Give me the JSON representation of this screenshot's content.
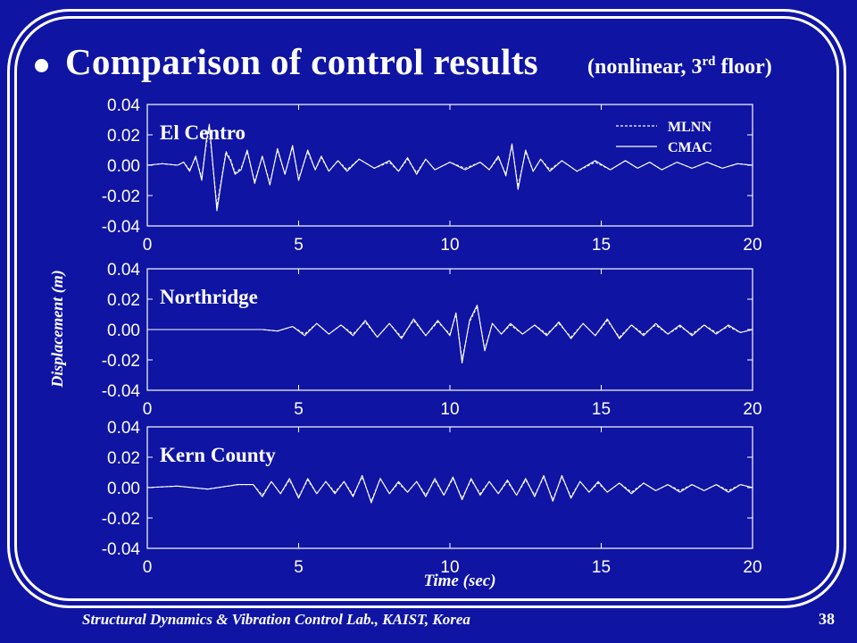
{
  "slide": {
    "title": "Comparison of control results",
    "subtitle_prefix": "(nonlinear, 3",
    "subtitle_sup": "rd",
    "subtitle_suffix": " floor)",
    "footer": "Structural Dynamics & Vibration Control Lab., KAIST, Korea",
    "page_number": "38"
  },
  "colors": {
    "background": "#0f14a3",
    "foreground": "#ffffff"
  },
  "chart_data": {
    "type": "line",
    "xlabel": "Time (sec)",
    "ylabel": "Displacement (m)",
    "xlim": [
      0,
      20
    ],
    "ylim": [
      -0.04,
      0.04
    ],
    "xticks": [
      "0",
      "5",
      "10",
      "15",
      "20"
    ],
    "yticks": [
      "0.04",
      "0.02",
      "0.00",
      "-0.02",
      "-0.04"
    ],
    "grid": false,
    "legend_position": "top-right",
    "legend": [
      {
        "name": "MLNN",
        "style": "dashed"
      },
      {
        "name": "CMAC",
        "style": "solid"
      }
    ],
    "panels": [
      {
        "label": "El Centro",
        "series": [
          {
            "name": "CMAC",
            "x": [
              0,
              0.5,
              1,
              1.2,
              1.4,
              1.6,
              1.8,
              1.95,
              2.05,
              2.15,
              2.3,
              2.45,
              2.6,
              2.75,
              2.9,
              3.1,
              3.3,
              3.55,
              3.8,
              4.05,
              4.3,
              4.55,
              4.8,
              5,
              5.3,
              5.55,
              5.75,
              6,
              6.3,
              6.6,
              7,
              7.5,
              8,
              8.3,
              8.6,
              8.9,
              9.2,
              9.5,
              10,
              10.5,
              11,
              11.3,
              11.6,
              11.85,
              12.05,
              12.25,
              12.5,
              12.75,
              13,
              13.3,
              13.7,
              14.2,
              14.8,
              15.3,
              15.8,
              16.2,
              16.6,
              17,
              17.5,
              18,
              18.5,
              19,
              19.5,
              20
            ],
            "y": [
              0,
              0.001,
              0,
              0.002,
              -0.004,
              0.006,
              -0.01,
              0.016,
              0.027,
              0.004,
              -0.03,
              -0.01,
              0.008,
              0.003,
              -0.006,
              -0.003,
              0.01,
              -0.012,
              0.006,
              -0.013,
              0.011,
              -0.006,
              0.013,
              -0.01,
              0.01,
              -0.003,
              0.006,
              -0.004,
              0.003,
              -0.004,
              0.004,
              -0.002,
              0.003,
              -0.004,
              0.005,
              -0.006,
              0.004,
              -0.003,
              0.002,
              -0.003,
              0.002,
              -0.003,
              0.006,
              -0.007,
              0.014,
              -0.016,
              0.01,
              -0.004,
              0.004,
              -0.004,
              0.003,
              -0.004,
              0.003,
              -0.003,
              0.003,
              -0.002,
              0.002,
              -0.003,
              0.002,
              -0.002,
              0.002,
              -0.002,
              0.001,
              0
            ]
          },
          {
            "name": "MLNN",
            "x": [
              0,
              0.5,
              1,
              1.2,
              1.4,
              1.6,
              1.8,
              1.95,
              2.05,
              2.15,
              2.3,
              2.45,
              2.6,
              2.75,
              2.9,
              3.1,
              3.3,
              3.55,
              3.8,
              4.05,
              4.3,
              4.55,
              4.8,
              5,
              5.3,
              5.55,
              5.75,
              6,
              6.3,
              6.6,
              7,
              7.5,
              8,
              8.3,
              8.6,
              8.9,
              9.2,
              9.5,
              10,
              10.5,
              11,
              11.3,
              11.6,
              11.85,
              12.05,
              12.25,
              12.5,
              12.75,
              13,
              13.3,
              13.7,
              14.2,
              14.8,
              15.3,
              15.8,
              16.2,
              16.6,
              17,
              17.5,
              18,
              18.5,
              19,
              19.5,
              20
            ],
            "y": [
              0,
              0.001,
              0,
              0.002,
              -0.003,
              0.005,
              -0.008,
              0.014,
              0.024,
              0.003,
              -0.027,
              -0.009,
              0.009,
              0.004,
              -0.005,
              -0.002,
              0.009,
              -0.011,
              0.006,
              -0.012,
              0.01,
              -0.006,
              0.012,
              -0.009,
              0.009,
              -0.003,
              0.005,
              -0.004,
              0.003,
              -0.003,
              0.004,
              -0.002,
              0.002,
              -0.004,
              0.004,
              -0.005,
              0.004,
              -0.003,
              0.002,
              -0.002,
              0.002,
              -0.003,
              0.005,
              -0.006,
              0.013,
              -0.014,
              0.009,
              -0.004,
              0.004,
              -0.003,
              0.003,
              -0.004,
              0.002,
              -0.003,
              0.003,
              -0.002,
              0.002,
              -0.003,
              0.002,
              -0.002,
              0.002,
              -0.002,
              0.001,
              0
            ]
          }
        ]
      },
      {
        "label": "Northridge",
        "series": [
          {
            "name": "CMAC",
            "x": [
              0,
              1,
              2,
              3,
              3.8,
              4.3,
              4.8,
              5.2,
              5.6,
              6,
              6.4,
              6.8,
              7.2,
              7.6,
              8,
              8.4,
              8.8,
              9.2,
              9.6,
              10,
              10.2,
              10.4,
              10.65,
              10.9,
              11.15,
              11.4,
              11.7,
              12,
              12.4,
              12.8,
              13.2,
              13.6,
              14,
              14.4,
              14.8,
              15.2,
              15.6,
              16,
              16.4,
              16.8,
              17.2,
              17.6,
              18,
              18.4,
              18.8,
              19.2,
              19.6,
              20
            ],
            "y": [
              0,
              0,
              0,
              0,
              0,
              -0.001,
              0.002,
              -0.004,
              0.004,
              -0.003,
              0.003,
              -0.004,
              0.006,
              -0.005,
              0.004,
              -0.006,
              0.007,
              -0.004,
              0.006,
              -0.004,
              0.011,
              -0.022,
              0.006,
              0.016,
              -0.014,
              0.004,
              -0.003,
              0.004,
              -0.003,
              0.003,
              -0.004,
              0.005,
              -0.006,
              0.004,
              -0.004,
              0.007,
              -0.006,
              0.003,
              -0.004,
              0.004,
              -0.003,
              0.003,
              -0.004,
              0.003,
              -0.003,
              0.003,
              -0.002,
              0
            ]
          },
          {
            "name": "MLNN",
            "x": [
              0,
              1,
              2,
              3,
              3.8,
              4.3,
              4.8,
              5.2,
              5.6,
              6,
              6.4,
              6.8,
              7.2,
              7.6,
              8,
              8.4,
              8.8,
              9.2,
              9.6,
              10,
              10.2,
              10.4,
              10.65,
              10.9,
              11.15,
              11.4,
              11.7,
              12,
              12.4,
              12.8,
              13.2,
              13.6,
              14,
              14.4,
              14.8,
              15.2,
              15.6,
              16,
              16.4,
              16.8,
              17.2,
              17.6,
              18,
              18.4,
              18.8,
              19.2,
              19.6,
              20
            ],
            "y": [
              0,
              0,
              0,
              0,
              0,
              -0.001,
              0.002,
              -0.003,
              0.004,
              -0.003,
              0.003,
              -0.003,
              0.005,
              -0.005,
              0.004,
              -0.005,
              0.006,
              -0.004,
              0.005,
              -0.003,
              0.01,
              -0.02,
              0.005,
              0.015,
              -0.013,
              0.004,
              -0.003,
              0.003,
              -0.003,
              0.003,
              -0.003,
              0.004,
              -0.005,
              0.004,
              -0.004,
              0.006,
              -0.005,
              0.003,
              -0.003,
              0.003,
              -0.003,
              0.002,
              -0.003,
              0.003,
              -0.002,
              0.002,
              -0.002,
              0
            ]
          }
        ]
      },
      {
        "label": "Kern County",
        "series": [
          {
            "name": "CMAC",
            "x": [
              0,
              1,
              2,
              3,
              3.5,
              3.8,
              4.1,
              4.4,
              4.7,
              5,
              5.3,
              5.6,
              5.9,
              6.2,
              6.5,
              6.8,
              7.1,
              7.4,
              7.7,
              8,
              8.3,
              8.6,
              8.9,
              9.2,
              9.5,
              9.8,
              10.1,
              10.4,
              10.7,
              11,
              11.3,
              11.6,
              11.9,
              12.2,
              12.5,
              12.8,
              13.1,
              13.4,
              13.7,
              14,
              14.3,
              14.6,
              14.9,
              15.2,
              15.6,
              16,
              16.4,
              16.8,
              17.2,
              17.6,
              18,
              18.4,
              18.8,
              19.2,
              19.6,
              20
            ],
            "y": [
              0,
              0.001,
              -0.001,
              0.002,
              0.002,
              -0.006,
              0.004,
              -0.004,
              0.006,
              -0.007,
              0.006,
              -0.004,
              0.004,
              -0.004,
              0.004,
              -0.006,
              0.008,
              -0.01,
              0.006,
              -0.004,
              0.004,
              -0.003,
              0.004,
              -0.006,
              0.006,
              -0.005,
              0.007,
              -0.008,
              0.006,
              -0.005,
              0.004,
              -0.004,
              0.005,
              -0.005,
              0.006,
              -0.006,
              0.008,
              -0.009,
              0.008,
              -0.007,
              0.004,
              -0.003,
              0.004,
              -0.003,
              0.003,
              -0.004,
              0.003,
              -0.002,
              0.002,
              -0.003,
              0.002,
              -0.002,
              0.002,
              -0.003,
              0.002,
              0
            ]
          },
          {
            "name": "MLNN",
            "x": [
              0,
              1,
              2,
              3,
              3.5,
              3.8,
              4.1,
              4.4,
              4.7,
              5,
              5.3,
              5.6,
              5.9,
              6.2,
              6.5,
              6.8,
              7.1,
              7.4,
              7.7,
              8,
              8.3,
              8.6,
              8.9,
              9.2,
              9.5,
              9.8,
              10.1,
              10.4,
              10.7,
              11,
              11.3,
              11.6,
              11.9,
              12.2,
              12.5,
              12.8,
              13.1,
              13.4,
              13.7,
              14,
              14.3,
              14.6,
              14.9,
              15.2,
              15.6,
              16,
              16.4,
              16.8,
              17.2,
              17.6,
              18,
              18.4,
              18.8,
              19.2,
              19.6,
              20
            ],
            "y": [
              0,
              0.001,
              -0.001,
              0.002,
              0.002,
              -0.005,
              0.004,
              -0.004,
              0.005,
              -0.006,
              0.005,
              -0.004,
              0.004,
              -0.003,
              0.004,
              -0.005,
              0.007,
              -0.009,
              0.006,
              -0.004,
              0.003,
              -0.003,
              0.004,
              -0.005,
              0.005,
              -0.005,
              0.006,
              -0.007,
              0.005,
              -0.004,
              0.004,
              -0.004,
              0.004,
              -0.005,
              0.005,
              -0.005,
              0.007,
              -0.008,
              0.007,
              -0.006,
              0.004,
              -0.003,
              0.003,
              -0.003,
              0.003,
              -0.003,
              0.003,
              -0.002,
              0.002,
              -0.002,
              0.002,
              -0.002,
              0.002,
              -0.002,
              0.002,
              0
            ]
          }
        ]
      }
    ]
  }
}
